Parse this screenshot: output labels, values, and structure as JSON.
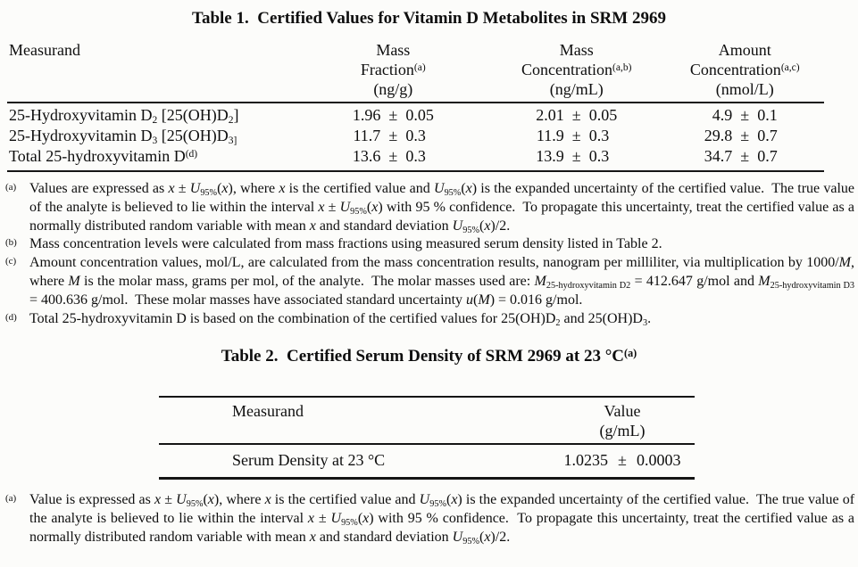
{
  "table1": {
    "title": "Table 1.  Certified Values for Vitamin D Metabolites in SRM 2969",
    "pm": "±",
    "header": {
      "measurand": "Measurand",
      "col1_line1": "Mass",
      "col1_line2": [
        {
          "t": "Fraction"
        },
        {
          "t": "(a)",
          "sup": true
        }
      ],
      "col1_line3": "(ng/g)",
      "col2_line1": "Mass",
      "col2_line2": [
        {
          "t": "Concentration"
        },
        {
          "t": "(a,b)",
          "sup": true
        }
      ],
      "col2_line3": "(ng/mL)",
      "col3_line1": "Amount",
      "col3_line2": [
        {
          "t": "Concentration"
        },
        {
          "t": "(a,c)",
          "sup": true
        }
      ],
      "col3_line3": "(nmol/L)"
    },
    "rows": [
      {
        "name": [
          {
            "t": "25-Hydroxyvitamin D"
          },
          {
            "t": "2",
            "sub": true
          },
          {
            "t": " [25(OH)D"
          },
          {
            "t": "2",
            "sub": true
          },
          {
            "t": "]"
          }
        ],
        "values": [
          {
            "num": "1.96",
            "unc": "0.05"
          },
          {
            "num": "2.01",
            "unc": "0.05"
          },
          {
            "num": "4.9",
            "unc": "0.1"
          }
        ]
      },
      {
        "name": [
          {
            "t": "25-Hydroxyvitamin D"
          },
          {
            "t": "3",
            "sub": true
          },
          {
            "t": " [25(OH)D"
          },
          {
            "t": "3]",
            "sub": true
          }
        ],
        "values": [
          {
            "num": "11.7",
            "unc": "0.3"
          },
          {
            "num": "11.9",
            "unc": "0.3"
          },
          {
            "num": "29.8",
            "unc": "0.7"
          }
        ]
      },
      {
        "name": [
          {
            "t": "Total 25-hydroxyvitamin D"
          },
          {
            "t": "(d)",
            "sup": true
          }
        ],
        "values": [
          {
            "num": "13.6",
            "unc": "0.3"
          },
          {
            "num": "13.9",
            "unc": "0.3"
          },
          {
            "num": "34.7",
            "unc": "0.7"
          }
        ]
      }
    ],
    "footnotes": [
      {
        "marker": "(a)",
        "segments": [
          {
            "t": "Values are expressed as "
          },
          {
            "t": "x",
            "i": true
          },
          {
            "t": " ± "
          },
          {
            "t": "U",
            "i": true
          },
          {
            "t": "95%",
            "sub": true
          },
          {
            "t": "("
          },
          {
            "t": "x",
            "i": true
          },
          {
            "t": "), where "
          },
          {
            "t": "x",
            "i": true
          },
          {
            "t": " is the certified value and "
          },
          {
            "t": "U",
            "i": true
          },
          {
            "t": "95%",
            "sub": true
          },
          {
            "t": "("
          },
          {
            "t": "x",
            "i": true
          },
          {
            "t": ") is the expanded uncertainty of the certified value.  The true value of the analyte is believed to lie within the interval "
          },
          {
            "t": "x",
            "i": true
          },
          {
            "t": " ± "
          },
          {
            "t": "U",
            "i": true
          },
          {
            "t": "95%",
            "sub": true
          },
          {
            "t": "("
          },
          {
            "t": "x",
            "i": true
          },
          {
            "t": ") with 95 % confidence.  To propagate this uncertainty, treat the certified value as a normally distributed random variable with mean "
          },
          {
            "t": "x",
            "i": true
          },
          {
            "t": " and standard deviation "
          },
          {
            "t": "U",
            "i": true
          },
          {
            "t": "95%",
            "sub": true
          },
          {
            "t": "("
          },
          {
            "t": "x",
            "i": true
          },
          {
            "t": ")/2."
          }
        ]
      },
      {
        "marker": "(b)",
        "segments": [
          {
            "t": "Mass concentration levels were calculated from mass fractions using measured serum density listed in Table 2."
          }
        ]
      },
      {
        "marker": "(c)",
        "segments": [
          {
            "t": "Amount concentration values, mol/L, are calculated from the mass concentration results, nanogram per milliliter, via multiplication by 1000/"
          },
          {
            "t": "M",
            "i": true
          },
          {
            "t": ", where "
          },
          {
            "t": "M",
            "i": true
          },
          {
            "t": " is the molar mass, grams per mol, of the analyte.  The molar masses used are: "
          },
          {
            "t": "M",
            "i": true
          },
          {
            "t": "25-hydroxyvitamin D2",
            "sub": true
          },
          {
            "t": " = 412.647 g/mol and "
          },
          {
            "t": "M",
            "i": true
          },
          {
            "t": "25-hydroxyvitamin D3",
            "sub": true
          },
          {
            "t": " = 400.636 g/mol.  These molar masses have associated standard uncertainty "
          },
          {
            "t": "u",
            "i": true
          },
          {
            "t": "("
          },
          {
            "t": "M",
            "i": true
          },
          {
            "t": ") = 0.016 g/mol."
          }
        ]
      },
      {
        "marker": "(d)",
        "segments": [
          {
            "t": "Total 25-hydroxyvitamin D is based on the combination of the certified values for 25(OH)D"
          },
          {
            "t": "2",
            "sub": true
          },
          {
            "t": " and 25(OH)D"
          },
          {
            "t": "3",
            "sub": true
          },
          {
            "t": "."
          }
        ]
      }
    ]
  },
  "table2": {
    "title": [
      {
        "t": "Table 2.  Certified Serum Density of SRM 2969 at 23 °C"
      },
      {
        "t": "(a)",
        "sup": true
      }
    ],
    "header": {
      "measurand": "Measurand",
      "value_line1": "Value",
      "value_line2": "(g/mL)"
    },
    "row": {
      "name": "Serum Density at 23 °C",
      "num": "1.0235",
      "pm": "±",
      "unc": "0.0003"
    },
    "footnote": {
      "marker": "(a)",
      "segments": [
        {
          "t": "Value is expressed as "
        },
        {
          "t": "x",
          "i": true
        },
        {
          "t": " ± "
        },
        {
          "t": "U",
          "i": true
        },
        {
          "t": "95%",
          "sub": true
        },
        {
          "t": "("
        },
        {
          "t": "x",
          "i": true
        },
        {
          "t": "), where "
        },
        {
          "t": "x",
          "i": true
        },
        {
          "t": " is the certified value and "
        },
        {
          "t": "U",
          "i": true
        },
        {
          "t": "95%",
          "sub": true
        },
        {
          "t": "("
        },
        {
          "t": "x",
          "i": true
        },
        {
          "t": ") is the expanded uncertainty of the certified value.  The true value of the analyte is believed to lie within the interval "
        },
        {
          "t": "x",
          "i": true
        },
        {
          "t": " ± "
        },
        {
          "t": "U",
          "i": true
        },
        {
          "t": "95%",
          "sub": true
        },
        {
          "t": "("
        },
        {
          "t": "x",
          "i": true
        },
        {
          "t": ") with 95 % confidence.  To propagate this uncertainty, treat the certified value as a normally distributed random variable with mean "
        },
        {
          "t": "x",
          "i": true
        },
        {
          "t": " and standard deviation "
        },
        {
          "t": "U",
          "i": true
        },
        {
          "t": "95%",
          "sub": true
        },
        {
          "t": "("
        },
        {
          "t": "x",
          "i": true
        },
        {
          "t": ")/2."
        }
      ]
    }
  }
}
